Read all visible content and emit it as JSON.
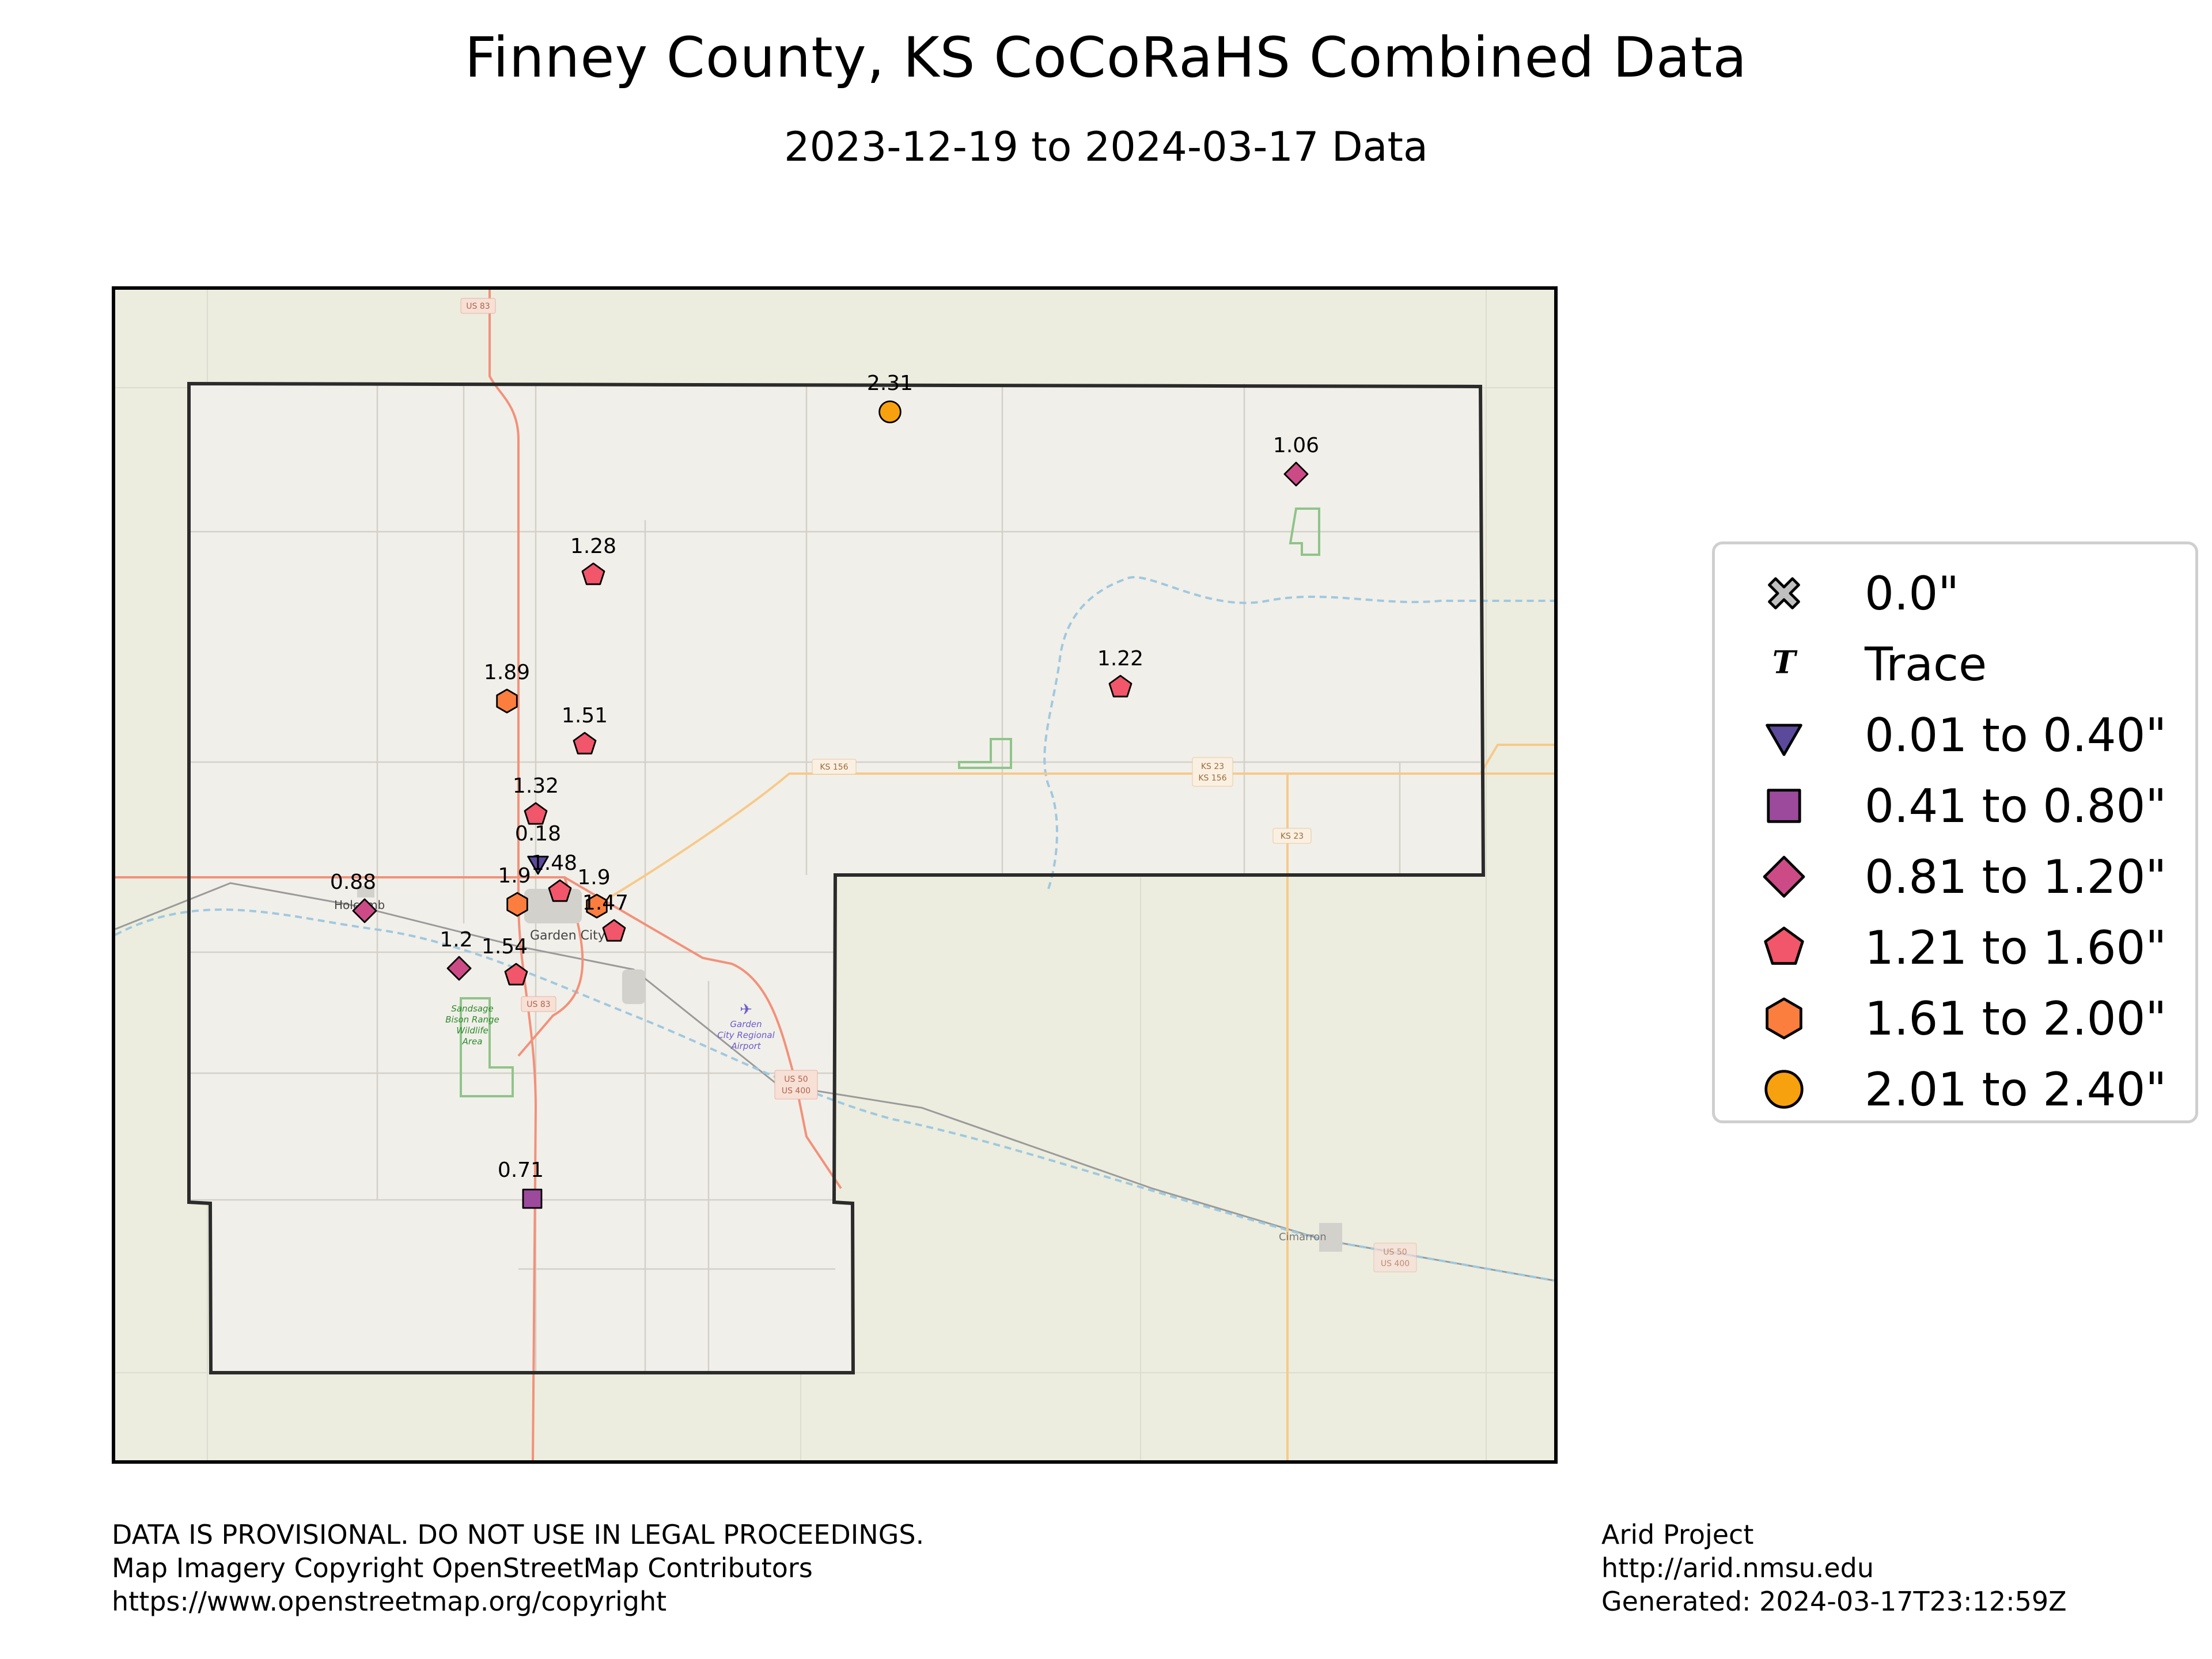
{
  "title": "Finney County, KS CoCoRaHS Combined Data",
  "subtitle": "2023-12-19 to 2024-03-17 Data",
  "legend": [
    {
      "label": "0.0\"",
      "symbol": "x-mark",
      "color": "#c0c0c0"
    },
    {
      "label": "Trace",
      "symbol": "T",
      "color": "#000000"
    },
    {
      "label": "0.01 to 0.40\"",
      "symbol": "triangle-down",
      "color": "#5b4a9b"
    },
    {
      "label": "0.41 to 0.80\"",
      "symbol": "square",
      "color": "#9c4a9c"
    },
    {
      "label": "0.81 to 1.20\"",
      "symbol": "diamond",
      "color": "#cc4b86"
    },
    {
      "label": "1.21 to 1.60\"",
      "symbol": "pentagon",
      "color": "#f1566a"
    },
    {
      "label": "1.61 to 2.00\"",
      "symbol": "hexagon",
      "color": "#fb7e3f"
    },
    {
      "label": "2.01 to 2.40\"",
      "symbol": "circle",
      "color": "#f8a10e"
    }
  ],
  "stations": [
    {
      "value": "2.31",
      "bin": 7
    },
    {
      "value": "1.06",
      "bin": 4
    },
    {
      "value": "1.28",
      "bin": 5
    },
    {
      "value": "1.89",
      "bin": 6
    },
    {
      "value": "1.51",
      "bin": 5
    },
    {
      "value": "1.22",
      "bin": 5
    },
    {
      "value": "1.32",
      "bin": 5
    },
    {
      "value": "0.18",
      "bin": 2
    },
    {
      "value": "1.48",
      "bin": 5
    },
    {
      "value": "1.9",
      "bin": 6
    },
    {
      "value": "1.9",
      "bin": 6
    },
    {
      "value": "1.47",
      "bin": 5
    },
    {
      "value": "0.88",
      "bin": 4
    },
    {
      "value": "1.2",
      "bin": 4
    },
    {
      "value": "1.54",
      "bin": 5
    },
    {
      "value": "0.71",
      "bin": 3
    }
  ],
  "map_labels": {
    "garden_city": "Garden City",
    "holcomb": "Holcomb",
    "cimarron": "Cimarron",
    "sandsage": [
      "Sandsage",
      "Bison Range",
      "Wildlife",
      "Area"
    ],
    "airport": [
      "Garden",
      "City Regional",
      "Airport"
    ],
    "shields": [
      "US 83",
      "KS 156",
      "KS 23",
      "KS 156",
      "KS 23",
      "US 83",
      "US 50",
      "US 400",
      "US 50",
      "US 400"
    ]
  },
  "footer_left": [
    "DATA IS PROVISIONAL. DO NOT USE IN LEGAL PROCEEDINGS.",
    "Map Imagery Copyright OpenStreetMap Contributors",
    "https://www.openstreetmap.org/copyright"
  ],
  "footer_right": [
    "Arid Project",
    "http://arid.nmsu.edu",
    "Generated: 2024-03-17T23:12:59Z"
  ],
  "colors": {
    "map_bg": "#ecedde",
    "county_fill": "#f1efe9",
    "road_major": "#f2917a",
    "road_state": "#f7c98a",
    "river": "#9fc8e0",
    "boundary": "#2b2b2b"
  }
}
